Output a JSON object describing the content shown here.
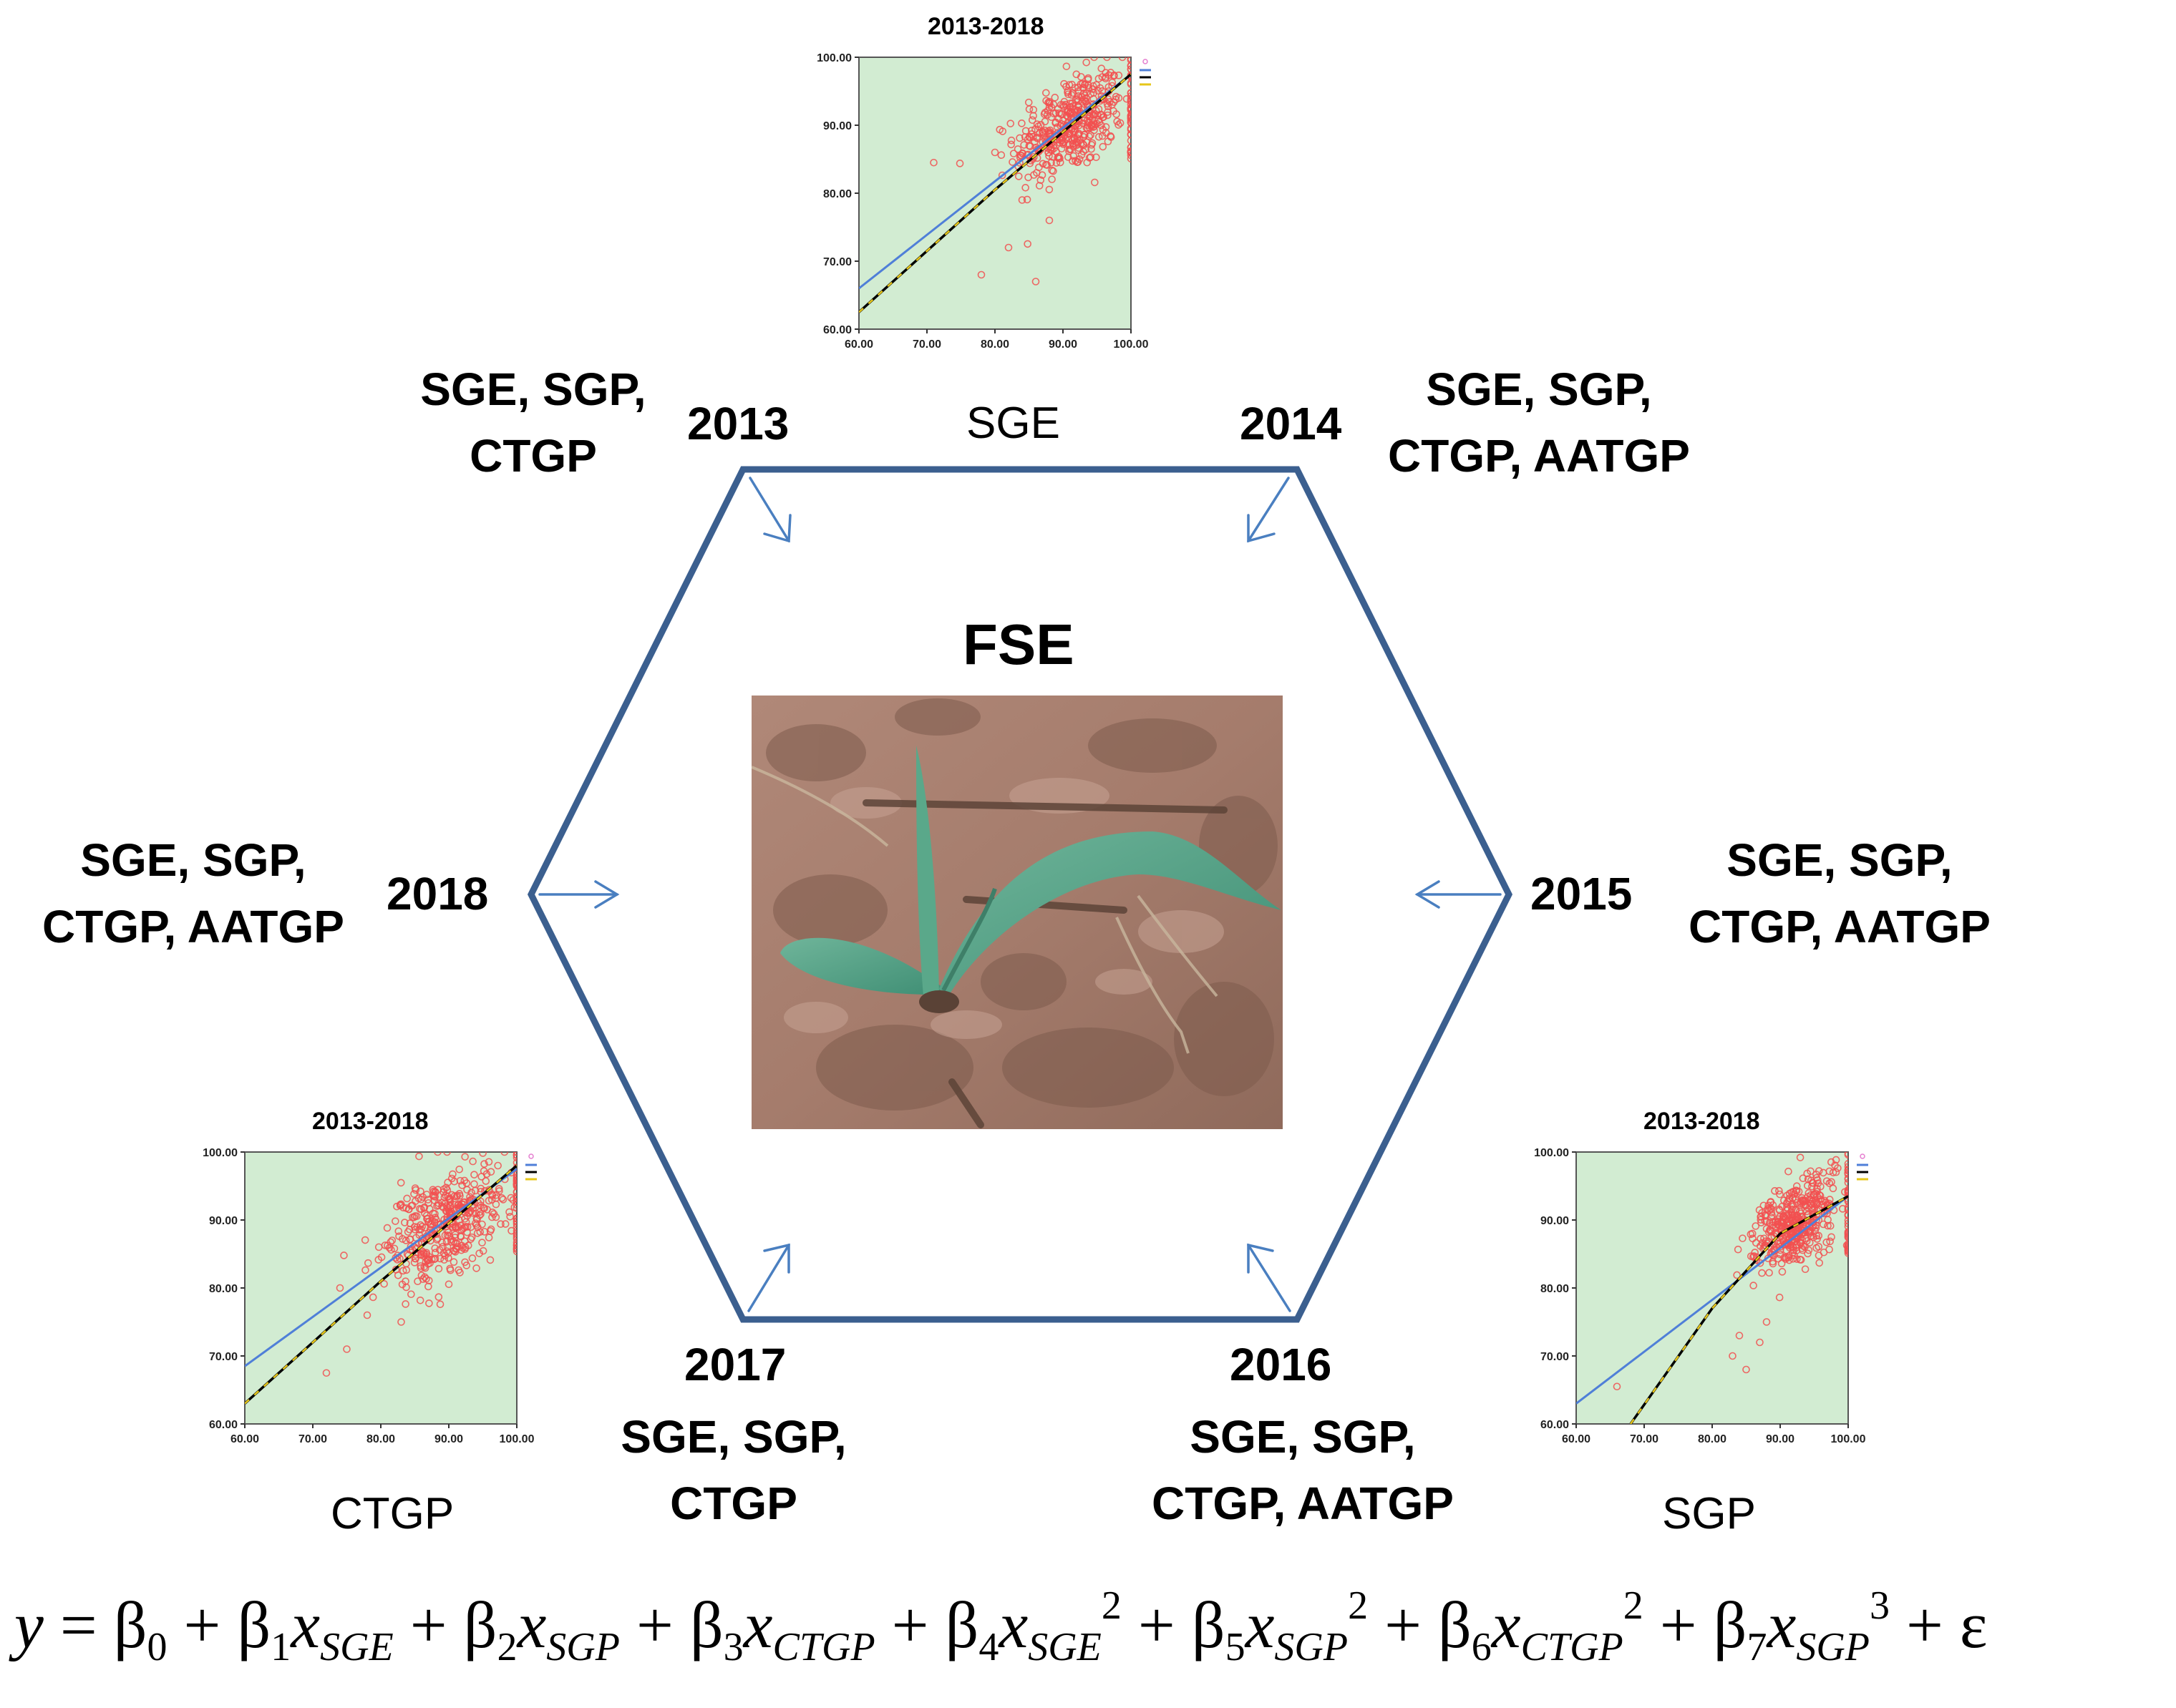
{
  "center": {
    "title": "FSE",
    "photo_description_icon": "maize-seedling-photo"
  },
  "vertices": [
    {
      "year": "2013",
      "features": [
        "SGE, SGP,",
        "CTGP"
      ]
    },
    {
      "year": "2014",
      "features": [
        "SGE, SGP,",
        "CTGP, AATGP"
      ]
    },
    {
      "year": "2015",
      "features": [
        "SGE, SGP,",
        "CTGP, AATGP"
      ]
    },
    {
      "year": "2016",
      "features": [
        "SGE, SGP,",
        "CTGP, AATGP"
      ]
    },
    {
      "year": "2017",
      "features": [
        "SGE, SGP,",
        "CTGP"
      ]
    },
    {
      "year": "2018",
      "features": [
        "SGE, SGP,",
        "CTGP, AATGP"
      ]
    }
  ],
  "equation": {
    "y": "y",
    "eq": "=",
    "beta": "β",
    "x": "x",
    "plus": "+",
    "epsilon": "ε",
    "sub_0": "0",
    "sub_1": "1",
    "sub_2": "2",
    "sub_3": "3",
    "sub_4": "4",
    "sub_5": "5",
    "sub_6": "6",
    "sub_7": "7",
    "var_sge": "SGE",
    "var_sgp": "SGP",
    "var_ctgp": "CTGP",
    "pow_2": "2",
    "pow_3": "3"
  },
  "colors": {
    "hexagon": "#3b5f8f",
    "arrow": "#4a7fc0",
    "plot_bg": "#d2ecd2",
    "point": "#f25050",
    "fit_linear": "#4f7fd8",
    "fit_nonlinear": "#000000",
    "fit_nonlinear_dash": "#e6c619"
  },
  "chart_data": [
    {
      "type": "scatter",
      "title": "2013-2018",
      "xlabel": "SGE",
      "ylabel": "",
      "xlim": [
        60,
        100
      ],
      "ylim": [
        60,
        100
      ],
      "xticks": [
        "60.00",
        "70.00",
        "80.00",
        "90.00",
        "100.00"
      ],
      "yticks": [
        "60.00",
        "70.00",
        "80.00",
        "90.00",
        "100.00"
      ],
      "grid": false,
      "cluster": {
        "center": [
          91,
          90
        ],
        "spread": [
          4,
          3.5
        ],
        "count": 420
      },
      "outliers": [
        [
          71,
          84.5
        ],
        [
          78,
          68
        ],
        [
          86,
          67
        ],
        [
          82,
          72
        ],
        [
          80,
          86
        ],
        [
          84,
          79
        ],
        [
          88,
          76
        ]
      ],
      "right_column_x": 100,
      "fit_linear": [
        [
          60,
          66
        ],
        [
          100,
          97.5
        ]
      ],
      "fit_nonlinear": [
        [
          60,
          62.5
        ],
        [
          80,
          80.5
        ],
        [
          100,
          97.5
        ]
      ]
    },
    {
      "type": "scatter",
      "title": "2013-2018",
      "xlabel": "CTGP",
      "ylabel": "",
      "xlim": [
        60,
        100
      ],
      "ylim": [
        60,
        100
      ],
      "xticks": [
        "60.00",
        "70.00",
        "80.00",
        "90.00",
        "100.00"
      ],
      "yticks": [
        "60.00",
        "70.00",
        "80.00",
        "90.00",
        "100.00"
      ],
      "grid": false,
      "cluster": {
        "center": [
          89,
          89
        ],
        "spread": [
          4.5,
          3.8
        ],
        "count": 420
      },
      "outliers": [
        [
          72,
          67.5
        ],
        [
          75,
          71
        ],
        [
          83,
          75
        ],
        [
          78,
          76
        ],
        [
          74,
          80
        ]
      ],
      "right_column_x": 100,
      "fit_linear": [
        [
          60,
          68.5
        ],
        [
          100,
          97.5
        ]
      ],
      "fit_nonlinear": [
        [
          60,
          63
        ],
        [
          80,
          81
        ],
        [
          100,
          98
        ]
      ]
    },
    {
      "type": "scatter",
      "title": "2013-2018",
      "xlabel": "SGP",
      "ylabel": "",
      "xlim": [
        60,
        100
      ],
      "ylim": [
        60,
        100
      ],
      "xticks": [
        "60.00",
        "70.00",
        "80.00",
        "90.00",
        "100.00"
      ],
      "yticks": [
        "60.00",
        "70.00",
        "80.00",
        "90.00",
        "100.00"
      ],
      "grid": false,
      "cluster": {
        "center": [
          92.5,
          89.5
        ],
        "spread": [
          3,
          3.2
        ],
        "count": 420
      },
      "outliers": [
        [
          66,
          65.5
        ],
        [
          83,
          70
        ],
        [
          85,
          68
        ],
        [
          87,
          72
        ],
        [
          88,
          75
        ],
        [
          84,
          73
        ]
      ],
      "right_column_x": 100,
      "fit_linear": [
        [
          60,
          63
        ],
        [
          100,
          93.5
        ]
      ],
      "fit_nonlinear": [
        [
          68,
          60
        ],
        [
          80,
          77
        ],
        [
          90,
          88
        ],
        [
          100,
          93.5
        ]
      ]
    }
  ]
}
